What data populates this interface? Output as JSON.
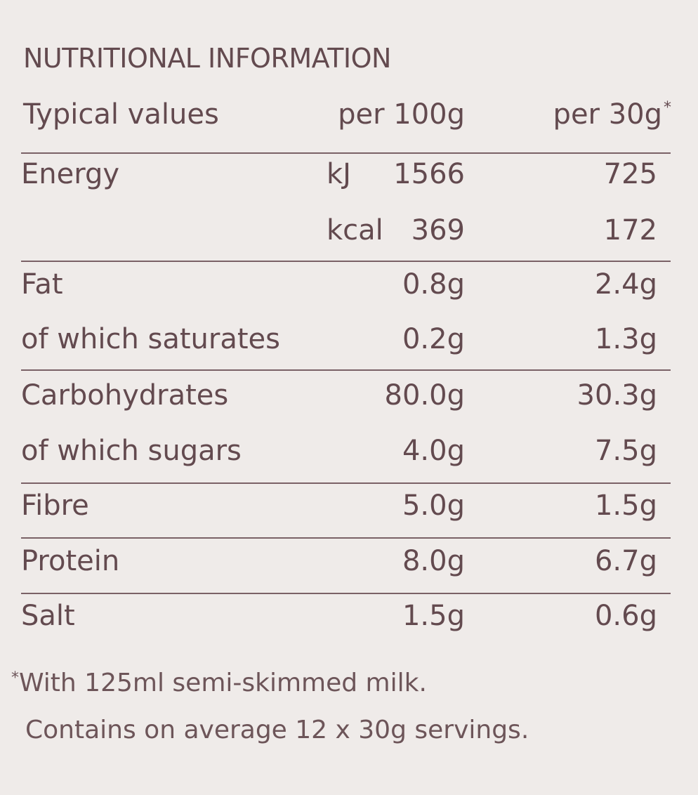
{
  "title": "NUTRITIONAL INFORMATION",
  "table": {
    "header": [
      "Typical values",
      "per 100g",
      "per 30g"
    ],
    "header_mark": "*",
    "rows": [
      {
        "label": "Energy",
        "unit": "kJ",
        "per_100g": "1566",
        "per_30g": "725"
      },
      {
        "unit": "kcal",
        "per_100g": "369",
        "per_30g": "172"
      },
      {
        "label": "Fat",
        "per_100g": "0.8g",
        "per_30g": "2.4g"
      },
      {
        "label": "of which saturates",
        "per_100g": "0.2g",
        "per_30g": "1.3g"
      },
      {
        "label": "Carbohydrates",
        "per_100g": "80.0g",
        "per_30g": "30.3g"
      },
      {
        "label": "of which sugars",
        "per_100g": "4.0g",
        "per_30g": "7.5g"
      },
      {
        "label": "Fibre",
        "per_100g": "5.0g",
        "per_30g": "1.5g"
      },
      {
        "label": "Protein",
        "per_100g": "8.0g",
        "per_30g": "6.7g"
      },
      {
        "label": "Salt",
        "per_100g": "1.5g",
        "per_30g": "0.6g"
      }
    ]
  },
  "footnote": {
    "mark": "*",
    "text": "With 125ml semi-skimmed milk."
  },
  "note": "Contains on average 12 x 30g servings."
}
